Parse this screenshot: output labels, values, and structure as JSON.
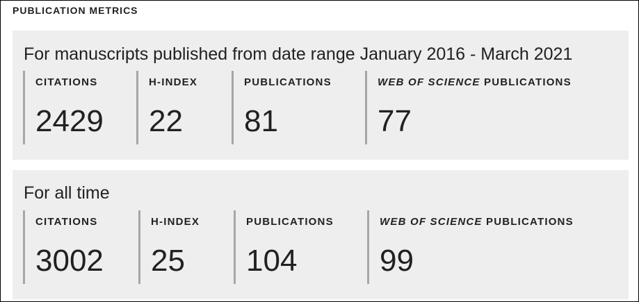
{
  "header": {
    "title": "PUBLICATION METRICS"
  },
  "range_panel": {
    "heading": "For manuscripts published from date range January 2016 - March 2021",
    "metrics": [
      {
        "label": "CITATIONS",
        "value": "2429"
      },
      {
        "label": "H-INDEX",
        "value": "22"
      },
      {
        "label": "PUBLICATIONS",
        "value": "81"
      },
      {
        "label_italic": "WEB OF SCIENCE",
        "label_rest": " PUBLICATIONS",
        "value": "77"
      }
    ]
  },
  "all_time_panel": {
    "heading": "For all time",
    "metrics": [
      {
        "label": "CITATIONS",
        "value": "3002"
      },
      {
        "label": "H-INDEX",
        "value": "25"
      },
      {
        "label": "PUBLICATIONS",
        "value": "104"
      },
      {
        "label_italic": "WEB OF SCIENCE",
        "label_rest": " PUBLICATIONS",
        "value": "99"
      }
    ]
  },
  "colors": {
    "panel_background": "#eeeeee",
    "divider": "#a6a6a6",
    "text": "#212121",
    "frame_border": "#000000"
  }
}
